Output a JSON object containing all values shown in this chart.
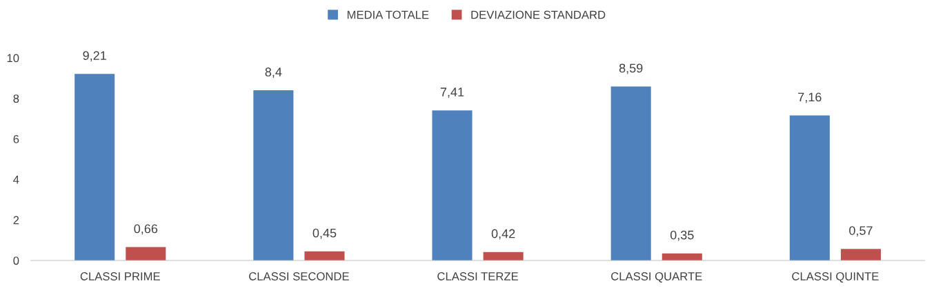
{
  "chart_data": {
    "type": "bar",
    "categories": [
      "CLASSI PRIME",
      "CLASSI SECONDE",
      "CLASSI TERZE",
      "CLASSI QUARTE",
      "CLASSI QUINTE"
    ],
    "series": [
      {
        "name": "MEDIA TOTALE",
        "color": "#4f81bd",
        "values": [
          9.21,
          8.4,
          7.41,
          8.59,
          7.16
        ],
        "value_labels": [
          "9,21",
          "8,4",
          "7,41",
          "8,59",
          "7,16"
        ]
      },
      {
        "name": "DEVIAZIONE STANDARD",
        "color": "#c0504d",
        "values": [
          0.66,
          0.45,
          0.42,
          0.35,
          0.57
        ],
        "value_labels": [
          "0,66",
          "0,45",
          "0,42",
          "0,35",
          "0,57"
        ]
      }
    ],
    "ylim": [
      0,
      10
    ],
    "yticks": [
      0,
      2,
      4,
      6,
      8,
      10
    ],
    "grid": false,
    "legend": "top"
  }
}
